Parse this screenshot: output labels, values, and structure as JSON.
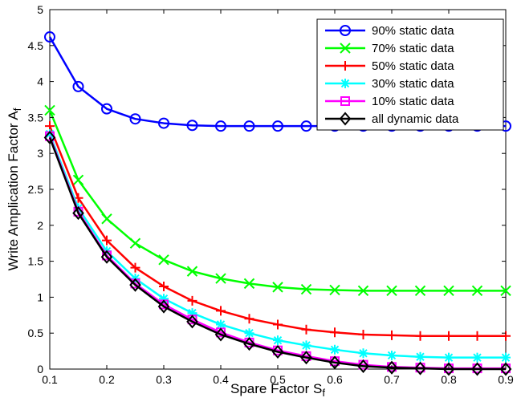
{
  "chart_data": {
    "type": "line",
    "x": [
      0.1,
      0.15,
      0.2,
      0.25,
      0.3,
      0.35,
      0.4,
      0.45,
      0.5,
      0.55,
      0.6,
      0.65,
      0.7,
      0.75,
      0.8,
      0.85,
      0.9
    ],
    "xlabel": "Spare Factor S",
    "xlabel_sub": "f",
    "ylabel": "Write Amplication Factor A",
    "ylabel_sub": "f",
    "xlim": [
      0.1,
      0.9
    ],
    "ylim": [
      0,
      5
    ],
    "xticks": [
      "0.1",
      "0.2",
      "0.3",
      "0.4",
      "0.5",
      "0.6",
      "0.7",
      "0.8",
      "0.9"
    ],
    "yticks": [
      "0",
      "0.5",
      "1",
      "1.5",
      "2",
      "2.5",
      "3",
      "3.5",
      "4",
      "4.5",
      "5"
    ],
    "grid": false,
    "legend_position": "top-right",
    "series": [
      {
        "name": "90% static data",
        "color": "#0000ff",
        "marker": "circle",
        "values": [
          4.62,
          3.93,
          3.62,
          3.48,
          3.42,
          3.39,
          3.38,
          3.38,
          3.38,
          3.38,
          3.38,
          3.38,
          3.38,
          3.38,
          3.38,
          3.38,
          3.38
        ]
      },
      {
        "name": "70% static data",
        "color": "#00ff00",
        "marker": "x",
        "values": [
          3.6,
          2.63,
          2.09,
          1.75,
          1.52,
          1.36,
          1.26,
          1.19,
          1.14,
          1.11,
          1.1,
          1.09,
          1.09,
          1.09,
          1.09,
          1.09,
          1.09
        ]
      },
      {
        "name": "50% static data",
        "color": "#ff0000",
        "marker": "plus",
        "values": [
          3.38,
          2.38,
          1.79,
          1.41,
          1.15,
          0.95,
          0.81,
          0.7,
          0.62,
          0.55,
          0.51,
          0.48,
          0.47,
          0.46,
          0.46,
          0.46,
          0.46
        ]
      },
      {
        "name": "30% static data",
        "color": "#00ffff",
        "marker": "asterisk",
        "values": [
          3.27,
          2.24,
          1.64,
          1.26,
          0.98,
          0.78,
          0.62,
          0.5,
          0.4,
          0.33,
          0.27,
          0.22,
          0.19,
          0.17,
          0.16,
          0.16,
          0.16
        ]
      },
      {
        "name": "10% static data",
        "color": "#ff00ff",
        "marker": "square",
        "values": [
          3.24,
          2.19,
          1.58,
          1.19,
          0.9,
          0.69,
          0.51,
          0.37,
          0.26,
          0.18,
          0.11,
          0.06,
          0.03,
          0.02,
          0.01,
          0.01,
          0.01
        ]
      },
      {
        "name": "all dynamic data",
        "color": "#000000",
        "marker": "diamond",
        "values": [
          3.22,
          2.17,
          1.56,
          1.17,
          0.87,
          0.66,
          0.48,
          0.35,
          0.24,
          0.16,
          0.09,
          0.04,
          0.02,
          0.01,
          0.0,
          0.0,
          0.0
        ]
      }
    ]
  }
}
